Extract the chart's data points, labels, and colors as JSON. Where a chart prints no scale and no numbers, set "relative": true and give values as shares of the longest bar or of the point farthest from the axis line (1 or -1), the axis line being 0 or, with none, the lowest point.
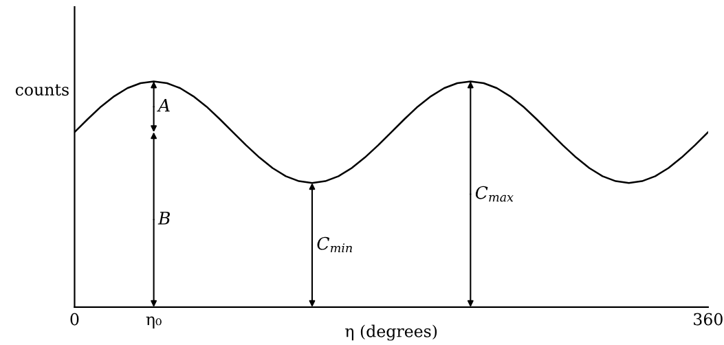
{
  "chart_data": {
    "type": "line",
    "relative": true,
    "xlabel": "η (degrees)",
    "ylabel": "counts",
    "x": [
      0,
      7.5,
      15,
      22.5,
      30,
      37.5,
      45,
      52.5,
      60,
      67.5,
      75,
      82.5,
      90,
      97.5,
      105,
      112.5,
      120,
      127.5,
      135,
      142.5,
      150,
      157.5,
      165,
      172.5,
      180,
      187.5,
      195,
      202.5,
      210,
      217.5,
      225,
      232.5,
      240,
      247.5,
      255,
      262.5,
      270,
      277.5,
      285,
      292.5,
      300,
      307.5,
      315,
      322.5,
      330,
      337.5,
      345,
      352.5,
      360
    ],
    "series": [
      {
        "color": "#000000",
        "values": [
          0.775,
          0.833,
          0.888,
          0.934,
          0.97,
          0.992,
          1.0,
          0.992,
          0.97,
          0.934,
          0.888,
          0.833,
          0.775,
          0.717,
          0.663,
          0.616,
          0.58,
          0.558,
          0.55,
          0.558,
          0.58,
          0.616,
          0.663,
          0.717,
          0.775,
          0.833,
          0.888,
          0.934,
          0.97,
          0.992,
          1.0,
          0.992,
          0.97,
          0.934,
          0.888,
          0.833,
          0.775,
          0.717,
          0.663,
          0.616,
          0.58,
          0.558,
          0.55,
          0.558,
          0.58,
          0.616,
          0.663,
          0.717,
          0.775
        ]
      }
    ],
    "xlim": [
      0,
      360
    ],
    "xticks": [
      0,
      {
        "value": 45,
        "label": "η₀"
      },
      360
    ],
    "annotations": [
      "A",
      "B",
      "C$_{min}$",
      "C$_{max}$"
    ]
  }
}
